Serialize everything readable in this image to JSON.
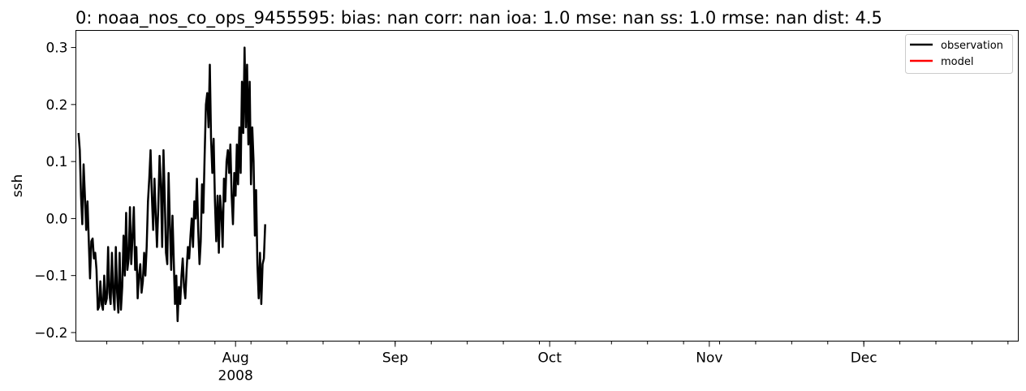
{
  "chart_data": {
    "type": "line",
    "title": "0: noaa_nos_co_ops_9455595: bias: nan  corr: nan  ioa: 1.0  mse: nan  ss: 1.0  rmse: nan  dist: 4.5",
    "xlabel": "",
    "ylabel": "ssh",
    "x_axis": "date",
    "xlim": [
      "2008-07-01",
      "2008-12-31"
    ],
    "ylim": [
      -0.215,
      0.33
    ],
    "yticks": [
      -0.2,
      -0.1,
      0.0,
      0.1,
      0.2,
      0.3
    ],
    "ytick_labels": [
      "−0.2",
      "−0.1",
      "0.0",
      "0.1",
      "0.2",
      "0.3"
    ],
    "xticks_major": [
      {
        "date": "2008-08-01",
        "label": "Aug",
        "sublabel": "2008"
      },
      {
        "date": "2008-09-01",
        "label": "Sep",
        "sublabel": ""
      },
      {
        "date": "2008-10-01",
        "label": "Oct",
        "sublabel": ""
      },
      {
        "date": "2008-11-01",
        "label": "Nov",
        "sublabel": ""
      },
      {
        "date": "2008-12-01",
        "label": "Dec",
        "sublabel": ""
      }
    ],
    "grid": false,
    "legend": "top-right",
    "series": [
      {
        "name": "observation",
        "color": "#000000",
        "start": "2008-07-01T12:00",
        "step_hours": 6,
        "values": [
          0.15,
          0.12,
          0.04,
          -0.01,
          0.095,
          0.04,
          -0.02,
          0.03,
          -0.04,
          -0.105,
          -0.04,
          -0.035,
          -0.07,
          -0.06,
          -0.09,
          -0.16,
          -0.155,
          -0.11,
          -0.15,
          -0.16,
          -0.1,
          -0.15,
          -0.14,
          -0.05,
          -0.13,
          -0.15,
          -0.06,
          -0.13,
          -0.16,
          -0.05,
          -0.13,
          -0.165,
          -0.06,
          -0.16,
          -0.12,
          -0.03,
          -0.1,
          0.01,
          -0.09,
          -0.07,
          0.02,
          -0.08,
          -0.03,
          0.02,
          -0.09,
          -0.05,
          -0.14,
          -0.1,
          -0.08,
          -0.13,
          -0.11,
          -0.06,
          -0.1,
          -0.05,
          0.03,
          0.07,
          0.12,
          0.04,
          -0.02,
          0.07,
          0.01,
          -0.05,
          0.02,
          0.11,
          0.06,
          -0.05,
          0.12,
          0.04,
          -0.06,
          -0.08,
          0.08,
          -0.01,
          -0.09,
          0.005,
          -0.07,
          -0.15,
          -0.1,
          -0.18,
          -0.12,
          -0.15,
          -0.1,
          -0.07,
          -0.12,
          -0.14,
          -0.09,
          -0.05,
          -0.07,
          -0.03,
          0.0,
          -0.05,
          0.03,
          0.0,
          0.07,
          -0.02,
          -0.08,
          -0.04,
          0.06,
          0.01,
          0.11,
          0.2,
          0.22,
          0.16,
          0.27,
          0.14,
          0.08,
          0.14,
          0.03,
          -0.04,
          0.04,
          -0.06,
          0.04,
          0.01,
          -0.05,
          0.07,
          0.03,
          0.1,
          0.12,
          0.08,
          0.13,
          0.04,
          -0.01,
          0.08,
          0.04,
          0.13,
          0.06,
          0.16,
          0.08,
          0.24,
          0.15,
          0.3,
          0.16,
          0.27,
          0.13,
          0.24,
          0.06,
          0.16,
          0.1,
          -0.03,
          0.05,
          -0.08,
          -0.14,
          -0.06,
          -0.15,
          -0.08,
          -0.07,
          -0.01
        ]
      },
      {
        "name": "model",
        "color": "#ff0000",
        "values": []
      }
    ]
  }
}
